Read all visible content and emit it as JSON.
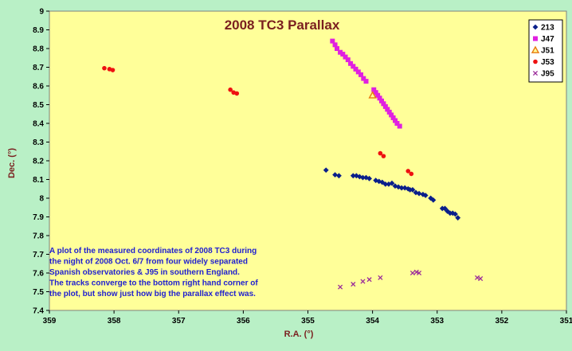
{
  "chart_data": {
    "type": "scatter",
    "title": "2008 TC3 Parallax",
    "xlabel": "R.A. (°)",
    "ylabel": "Dec. (°)",
    "xlim": [
      359,
      351
    ],
    "ylim": [
      7.4,
      9
    ],
    "x_reversed": true,
    "x_ticks": [
      "359",
      "358",
      "357",
      "356",
      "355",
      "354",
      "353",
      "352",
      "351"
    ],
    "y_ticks": [
      "7.4",
      "7.5",
      "7.6",
      "7.7",
      "7.8",
      "7.9",
      "8",
      "8.1",
      "8.2",
      "8.3",
      "8.4",
      "8.5",
      "8.6",
      "8.7",
      "8.8",
      "8.9",
      "9"
    ],
    "legend_position": "top-right",
    "annotation": [
      "A plot of the measured coordinates of 2008 TC3 during",
      "the night of 2008 Oct. 6/7 from four widely separated",
      "Spanish observatories & J95 in southern England.",
      "The tracks converge to the bottom right hand corner of",
      "the plot, but show just how big the parallax effect was."
    ],
    "series": [
      {
        "name": "213",
        "marker": "diamond",
        "color": "#0a1f8a",
        "points": [
          [
            354.72,
            8.15
          ],
          [
            354.58,
            8.125
          ],
          [
            354.52,
            8.12
          ],
          [
            354.3,
            8.12
          ],
          [
            354.25,
            8.12
          ],
          [
            354.2,
            8.115
          ],
          [
            354.15,
            8.11
          ],
          [
            354.1,
            8.11
          ],
          [
            354.05,
            8.105
          ],
          [
            353.95,
            8.095
          ],
          [
            353.9,
            8.09
          ],
          [
            353.85,
            8.085
          ],
          [
            353.8,
            8.075
          ],
          [
            353.75,
            8.075
          ],
          [
            353.7,
            8.08
          ],
          [
            353.65,
            8.065
          ],
          [
            353.6,
            8.06
          ],
          [
            353.55,
            8.055
          ],
          [
            353.5,
            8.055
          ],
          [
            353.45,
            8.05
          ],
          [
            353.42,
            8.045
          ],
          [
            353.38,
            8.045
          ],
          [
            353.33,
            8.03
          ],
          [
            353.28,
            8.025
          ],
          [
            353.22,
            8.02
          ],
          [
            353.18,
            8.015
          ],
          [
            353.1,
            8.0
          ],
          [
            353.06,
            7.99
          ],
          [
            352.92,
            7.945
          ],
          [
            352.88,
            7.945
          ],
          [
            352.84,
            7.93
          ],
          [
            352.8,
            7.92
          ],
          [
            352.76,
            7.92
          ],
          [
            352.72,
            7.915
          ],
          [
            352.68,
            7.895
          ]
        ]
      },
      {
        "name": "J47",
        "marker": "square",
        "color": "#e020e0",
        "points": [
          [
            354.62,
            8.84
          ],
          [
            354.58,
            8.82
          ],
          [
            354.55,
            8.8
          ],
          [
            354.5,
            8.78
          ],
          [
            354.46,
            8.77
          ],
          [
            354.42,
            8.755
          ],
          [
            354.38,
            8.74
          ],
          [
            354.34,
            8.72
          ],
          [
            354.3,
            8.705
          ],
          [
            354.26,
            8.69
          ],
          [
            354.22,
            8.675
          ],
          [
            354.18,
            8.66
          ],
          [
            354.14,
            8.64
          ],
          [
            354.1,
            8.625
          ],
          [
            353.98,
            8.58
          ],
          [
            353.95,
            8.565
          ],
          [
            353.92,
            8.55
          ],
          [
            353.89,
            8.535
          ],
          [
            353.86,
            8.52
          ],
          [
            353.83,
            8.505
          ],
          [
            353.8,
            8.49
          ],
          [
            353.77,
            8.475
          ],
          [
            353.74,
            8.46
          ],
          [
            353.71,
            8.445
          ],
          [
            353.68,
            8.43
          ],
          [
            353.65,
            8.415
          ],
          [
            353.62,
            8.4
          ],
          [
            353.58,
            8.385
          ]
        ]
      },
      {
        "name": "J51",
        "marker": "triangle",
        "color": "#e87a10",
        "points": [
          [
            354.0,
            8.55
          ]
        ]
      },
      {
        "name": "J53",
        "marker": "circle",
        "color": "#ee1111",
        "points": [
          [
            358.15,
            8.695
          ],
          [
            358.07,
            8.69
          ],
          [
            358.02,
            8.685
          ],
          [
            356.2,
            8.58
          ],
          [
            356.15,
            8.565
          ],
          [
            356.1,
            8.56
          ],
          [
            353.88,
            8.24
          ],
          [
            353.83,
            8.225
          ],
          [
            353.45,
            8.145
          ],
          [
            353.4,
            8.13
          ]
        ]
      },
      {
        "name": "J95",
        "marker": "x",
        "color": "#9a2a9a",
        "points": [
          [
            354.5,
            7.525
          ],
          [
            354.3,
            7.54
          ],
          [
            354.15,
            7.555
          ],
          [
            354.05,
            7.565
          ],
          [
            353.88,
            7.575
          ],
          [
            353.38,
            7.6
          ],
          [
            353.32,
            7.605
          ],
          [
            353.28,
            7.6
          ],
          [
            352.38,
            7.575
          ],
          [
            352.33,
            7.57
          ]
        ]
      }
    ]
  }
}
